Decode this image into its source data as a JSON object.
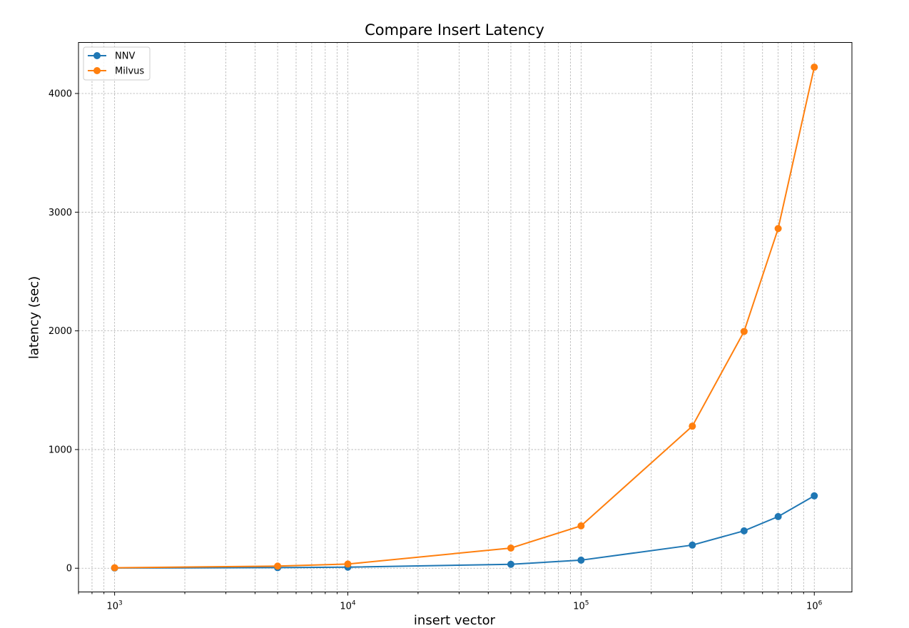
{
  "chart_data": {
    "type": "line",
    "title": "Compare Insert Latency",
    "xlabel": "insert vector",
    "ylabel": "latency (sec)",
    "xscale": "log",
    "xlim": [
      700,
      1450000
    ],
    "ylim": [
      -200,
      4430
    ],
    "x_ticks": [
      {
        "value": 1000,
        "base": "10",
        "exp": "3"
      },
      {
        "value": 10000,
        "base": "10",
        "exp": "4"
      },
      {
        "value": 100000,
        "base": "10",
        "exp": "5"
      },
      {
        "value": 1000000,
        "base": "10",
        "exp": "6"
      }
    ],
    "y_ticks": [
      0,
      1000,
      2000,
      3000,
      4000
    ],
    "grid": true,
    "legend": "top-left",
    "x": [
      1000,
      5000,
      10000,
      50000,
      100000,
      300000,
      500000,
      700000,
      1000000
    ],
    "series": [
      {
        "name": "NNV",
        "color": "#1f77b4",
        "values": [
          2,
          5,
          9,
          33,
          68,
          195,
          315,
          435,
          610
        ]
      },
      {
        "name": "Milvus",
        "color": "#ff7f0e",
        "values": [
          4,
          18,
          35,
          170,
          357,
          1197,
          1995,
          2862,
          4222
        ]
      }
    ]
  }
}
